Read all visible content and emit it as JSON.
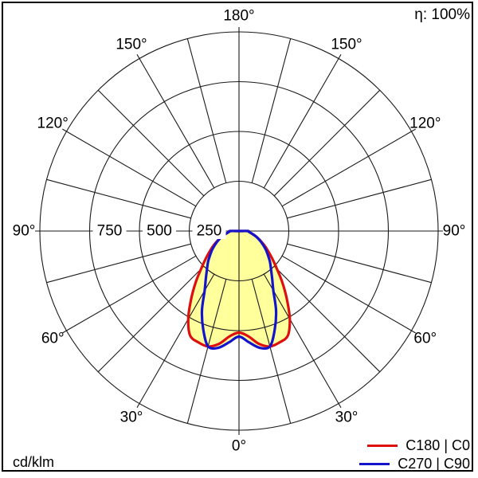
{
  "header": {
    "efficiency_label": "η: 100%"
  },
  "footer": {
    "unit_label": "cd/klm"
  },
  "colors": {
    "background": "#ffffff",
    "border": "#000000",
    "grid": "#1a1a1a",
    "fill": "#ffff9c",
    "text": "#000000",
    "label_mask": "#ffffff"
  },
  "chart_data": {
    "type": "polar_intensity_curve",
    "unit": "cd/klm",
    "efficiency": "100%",
    "r_max": 1000,
    "r_ticks": [
      250,
      500,
      750
    ],
    "r_tick_labels": [
      "250",
      "500",
      "750"
    ],
    "angle_step_deg": 15,
    "angle_labels_deg": [
      0,
      30,
      60,
      90,
      120,
      150,
      180
    ],
    "angle_label_suffix": "°",
    "legend_position": "bottom-right",
    "gamma_deg": [
      0,
      5,
      10,
      15,
      20,
      25,
      30,
      35,
      40,
      45,
      50,
      55,
      60,
      65,
      70,
      75,
      80,
      85,
      90,
      95,
      100,
      105,
      110,
      115,
      120,
      125,
      130,
      135,
      140,
      145,
      150,
      155,
      160,
      165,
      170,
      175,
      180
    ],
    "series": [
      {
        "name": "C180 | C0",
        "color": "#dd0f0f",
        "values": [
          510,
          530,
          575,
          600,
          595,
          580,
          510,
          420,
          340,
          270,
          220,
          180,
          150,
          122,
          100,
          80,
          62,
          50,
          45,
          0,
          0,
          0,
          0,
          0,
          0,
          0,
          0,
          0,
          0,
          0,
          0,
          0,
          0,
          0,
          0,
          0,
          0
        ]
      },
      {
        "name": "C270 | C90",
        "color": "#1414cc",
        "values": [
          530,
          560,
          595,
          600,
          525,
          440,
          345,
          290,
          250,
          220,
          190,
          165,
          140,
          118,
          98,
          78,
          62,
          50,
          45,
          0,
          0,
          0,
          0,
          0,
          0,
          0,
          0,
          0,
          0,
          0,
          0,
          0,
          0,
          0,
          0,
          0,
          0
        ]
      }
    ]
  }
}
